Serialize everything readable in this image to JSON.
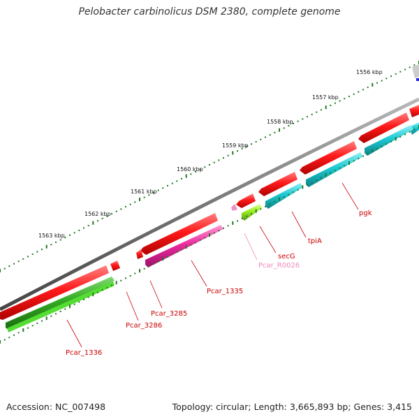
{
  "header": {
    "title": "Pelobacter carbinolicus DSM 2380, complete genome"
  },
  "footer": {
    "accession": "Accession: NC_007498",
    "topology": "Topology: circular; Length: 3,665,893 bp; Genes: 3,415"
  },
  "scale": {
    "ticks": [
      "1556 kbp",
      "1557 kbp",
      "1558 kbp",
      "1559 kbp",
      "1560 kbp",
      "1561 kbp",
      "1562 kbp",
      "1563 kbp"
    ]
  },
  "genes": {
    "pgk": "pgk",
    "tpiA": "tpiA",
    "secG": "secG",
    "Pcar_R0026": "Pcar_R0026",
    "Pcar_1335": "Pcar_1335",
    "Pcar_3285": "Pcar_3285",
    "Pcar_3286": "Pcar_3286",
    "Pcar_1336": "Pcar_1336"
  },
  "colors": {
    "cds_forward": "#ff1a1a",
    "cds_reverse_cyan": "#1ec8d2",
    "cds_magenta": "#ee2aa0",
    "cds_green": "#33aa22",
    "cds_lightgreen": "#99ee22",
    "rna_pink": "#f090c8",
    "backbone": "#777777",
    "tick": "#227722",
    "label_red": "#cc0000",
    "label_pink": "#ee88bb"
  }
}
